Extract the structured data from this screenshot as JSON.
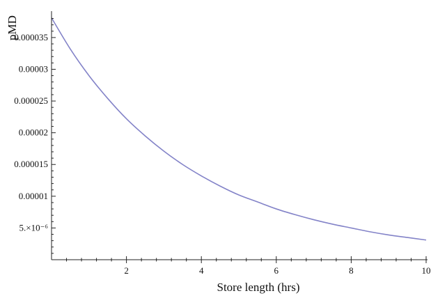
{
  "chart_data": {
    "type": "line",
    "title": "",
    "xlabel": "Store length (hrs)",
    "ylabel": "pMD",
    "xlim": [
      0,
      10
    ],
    "ylim": [
      0,
      3.85e-05
    ],
    "grid": false,
    "x_ticks": [
      {
        "value": 2,
        "label": "2"
      },
      {
        "value": 4,
        "label": "4"
      },
      {
        "value": 6,
        "label": "6"
      },
      {
        "value": 8,
        "label": "8"
      },
      {
        "value": 10,
        "label": "10"
      }
    ],
    "y_ticks": [
      {
        "value": 5e-06,
        "label": "5.×10⁻⁶"
      },
      {
        "value": 1e-05,
        "label": "0.00001"
      },
      {
        "value": 1.5e-05,
        "label": "0.000015"
      },
      {
        "value": 2e-05,
        "label": "0.00002"
      },
      {
        "value": 2.5e-05,
        "label": "0.000025"
      },
      {
        "value": 3e-05,
        "label": "0.00003"
      },
      {
        "value": 3.5e-05,
        "label": "0.000035"
      }
    ],
    "series": [
      {
        "color": "#8383c8",
        "x": [
          0,
          0.5,
          1,
          1.5,
          2,
          2.5,
          3,
          3.5,
          4,
          4.5,
          5,
          5.5,
          6,
          6.5,
          7,
          7.5,
          8,
          8.5,
          9,
          9.5,
          10
        ],
        "y": [
          3.81e-05,
          3.32e-05,
          2.9e-05,
          2.54e-05,
          2.22e-05,
          1.95e-05,
          1.71e-05,
          1.5e-05,
          1.32e-05,
          1.16e-05,
          1.02e-05,
          9.1e-06,
          8e-06,
          7.1e-06,
          6.3e-06,
          5.6e-06,
          5e-06,
          4.4e-06,
          3.9e-06,
          3.5e-06,
          3.1e-06
        ]
      }
    ]
  }
}
